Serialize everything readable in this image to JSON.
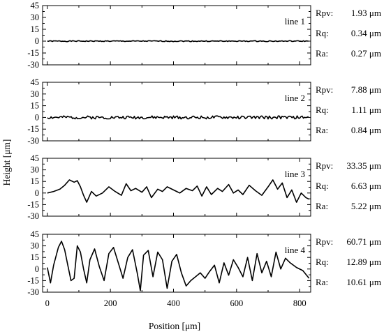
{
  "figure": {
    "ylabel": "Height [μm]",
    "xlabel": "Position [μm]",
    "stat_labels": [
      "Rpv:",
      "Rq:",
      "Ra:"
    ],
    "unit": "μm"
  },
  "chart_data": [
    {
      "type": "line",
      "title": "line 1",
      "xlim": [
        -15,
        835
      ],
      "ylim": [
        -30,
        45
      ],
      "xticks": [
        0,
        200,
        400,
        600,
        800
      ],
      "yticks": [
        -30,
        -15,
        0,
        15,
        30,
        45
      ],
      "stats": {
        "Rpv": "1.93",
        "Rq": "0.34",
        "Ra": "0.27"
      },
      "series": [
        {
          "values_seed": 1,
          "x_range": [
            0,
            830
          ],
          "y_mean": 0,
          "amplitude": 0.6
        }
      ]
    },
    {
      "type": "line",
      "title": "line 2",
      "xlim": [
        -15,
        835
      ],
      "ylim": [
        -30,
        45
      ],
      "xticks": [
        0,
        200,
        400,
        600,
        800
      ],
      "yticks": [
        -30,
        -15,
        0,
        15,
        30,
        45
      ],
      "stats": {
        "Rpv": "7.88",
        "Rq": "1.11",
        "Ra": "0.84"
      },
      "series": [
        {
          "values_seed": 2,
          "x_range": [
            0,
            830
          ],
          "y_mean": 0,
          "amplitude": 2
        }
      ]
    },
    {
      "type": "line",
      "title": "line 3",
      "xlim": [
        -15,
        835
      ],
      "ylim": [
        -30,
        45
      ],
      "xticks": [
        0,
        200,
        400,
        600,
        800
      ],
      "yticks": [
        -30,
        -15,
        0,
        15,
        30,
        45
      ],
      "stats": {
        "Rpv": "33.35",
        "Rq": "6.63",
        "Ra": "5.22"
      },
      "series": [
        {
          "x": [
            0,
            20,
            40,
            55,
            70,
            85,
            95,
            105,
            115,
            125,
            140,
            155,
            175,
            195,
            215,
            235,
            250,
            265,
            280,
            300,
            315,
            330,
            350,
            365,
            380,
            400,
            420,
            440,
            460,
            475,
            490,
            505,
            520,
            540,
            555,
            575,
            590,
            605,
            620,
            640,
            660,
            680,
            700,
            715,
            730,
            745,
            760,
            775,
            790,
            805,
            820,
            830
          ],
          "y": [
            0,
            2,
            5,
            10,
            17,
            14,
            16,
            8,
            -3,
            -12,
            2,
            -4,
            0,
            8,
            2,
            -3,
            12,
            3,
            6,
            1,
            8,
            -6,
            5,
            2,
            8,
            4,
            0,
            6,
            3,
            9,
            -4,
            8,
            -2,
            6,
            2,
            11,
            0,
            4,
            -2,
            10,
            3,
            -3,
            8,
            17,
            5,
            13,
            -6,
            4,
            -12,
            0,
            -6,
            -8
          ]
        }
      ]
    },
    {
      "type": "line",
      "title": "line 4",
      "xlim": [
        -15,
        835
      ],
      "ylim": [
        -30,
        45
      ],
      "xticks": [
        0,
        200,
        400,
        600,
        800
      ],
      "yticks": [
        -30,
        -15,
        0,
        15,
        30,
        45
      ],
      "stats": {
        "Rpv": "60.71",
        "Rq": "12.89",
        "Ra": "10.61"
      },
      "series": [
        {
          "x": [
            0,
            10,
            20,
            35,
            45,
            55,
            65,
            75,
            85,
            95,
            105,
            115,
            125,
            135,
            150,
            165,
            180,
            195,
            210,
            225,
            240,
            255,
            270,
            285,
            295,
            305,
            320,
            335,
            350,
            365,
            380,
            395,
            410,
            425,
            440,
            455,
            470,
            485,
            500,
            515,
            530,
            545,
            560,
            575,
            590,
            605,
            620,
            635,
            650,
            665,
            680,
            695,
            710,
            725,
            740,
            755,
            770,
            790,
            810,
            830
          ],
          "y": [
            2,
            -18,
            5,
            28,
            36,
            25,
            5,
            -15,
            -12,
            30,
            22,
            0,
            -18,
            12,
            26,
            3,
            -15,
            20,
            28,
            8,
            -12,
            15,
            25,
            -5,
            -28,
            18,
            24,
            -10,
            22,
            12,
            -25,
            10,
            19,
            -5,
            -22,
            -15,
            -10,
            -5,
            -12,
            -3,
            5,
            -18,
            8,
            -8,
            12,
            2,
            -10,
            15,
            -15,
            20,
            -5,
            10,
            -10,
            22,
            0,
            14,
            8,
            2,
            -2,
            -12
          ]
        }
      ]
    }
  ]
}
